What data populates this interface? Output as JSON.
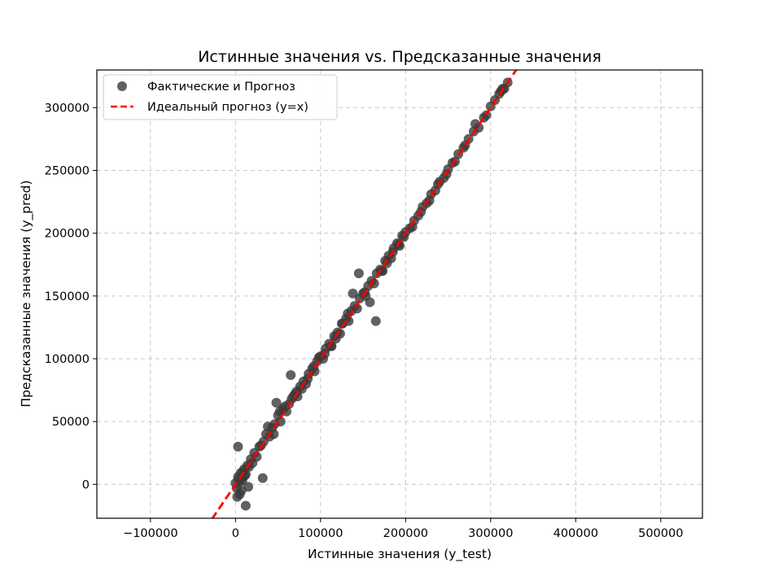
{
  "chart_data": {
    "type": "scatter",
    "title": "Истинные значения vs. Предсказанные значения",
    "xlabel": "Истинные значения (y_test)",
    "ylabel": "Предсказанные значения (y_pred)",
    "xlim": [
      -163000,
      549000
    ],
    "ylim": [
      -27000,
      330000
    ],
    "xticks": [
      -100000,
      0,
      100000,
      200000,
      300000,
      400000,
      500000
    ],
    "xtick_labels": [
      "−100000",
      "0",
      "100000",
      "200000",
      "300000",
      "400000",
      "500000"
    ],
    "yticks": [
      0,
      50000,
      100000,
      150000,
      200000,
      250000,
      300000
    ],
    "ytick_labels": [
      "0",
      "50000",
      "100000",
      "150000",
      "200000",
      "250000",
      "300000"
    ],
    "grid": true,
    "legend_position": "upper-left",
    "series": [
      {
        "name": "Фактические и  Прогноз",
        "kind": "scatter",
        "color": "#3a3a3a",
        "alpha": 0.8,
        "x": [
          0,
          1500,
          3000,
          4500,
          6000,
          8000,
          10000,
          12000,
          14000,
          16000,
          18000,
          20000,
          22000,
          25000,
          28000,
          30000,
          33000,
          36000,
          40000,
          43000,
          46000,
          50000,
          53000,
          56000,
          60000,
          63000,
          66000,
          70000,
          73000,
          76000,
          80000,
          83000,
          86000,
          90000,
          93000,
          96000,
          100000,
          103000,
          106000,
          110000,
          113000,
          116000,
          120000,
          123000,
          126000,
          130000,
          133000,
          136000,
          140000,
          143000,
          146000,
          150000,
          153000,
          156000,
          160000,
          163000,
          166000,
          170000,
          173000,
          176000,
          180000,
          183000,
          186000,
          190000,
          193000,
          196000,
          200000,
          205000,
          210000,
          215000,
          220000,
          225000,
          230000,
          235000,
          240000,
          245000,
          250000,
          255000,
          262000,
          268000,
          274000,
          280000,
          286000,
          292000,
          300000,
          305000,
          310000,
          312000,
          314000,
          316000,
          3000,
          5000,
          7000,
          9000,
          2000,
          4000,
          12000,
          15000,
          8000,
          11000,
          32000,
          38000,
          45000,
          52000,
          58000,
          65000,
          72000,
          78000,
          85000,
          92000,
          98000,
          105000,
          112000,
          118000,
          125000,
          132000,
          138000,
          145000,
          152000,
          158000,
          165000,
          172000,
          178000,
          185000,
          192000,
          198000,
          208000,
          218000,
          228000,
          238000,
          248000,
          258000,
          270000,
          282000,
          295000,
          320000,
          48000,
          68000
        ],
        "y": [
          1000,
          -3000,
          6000,
          2000,
          9000,
          5000,
          12000,
          8000,
          15000,
          14000,
          20000,
          17000,
          25000,
          22000,
          30000,
          31000,
          34000,
          40000,
          38000,
          45000,
          48000,
          55000,
          50000,
          60000,
          58000,
          64000,
          68000,
          72000,
          70000,
          78000,
          82000,
          80000,
          88000,
          92000,
          90000,
          98000,
          102000,
          100000,
          108000,
          112000,
          110000,
          118000,
          121000,
          120000,
          128000,
          132000,
          130000,
          138000,
          142000,
          140000,
          148000,
          152000,
          150000,
          158000,
          162000,
          160000,
          168000,
          171000,
          170000,
          178000,
          182000,
          180000,
          188000,
          192000,
          190000,
          198000,
          201000,
          204000,
          210000,
          214000,
          221000,
          224000,
          231000,
          234000,
          241000,
          244000,
          251000,
          256000,
          263000,
          268000,
          275000,
          281000,
          284000,
          292000,
          301000,
          306000,
          311000,
          313000,
          315000,
          315000,
          30000,
          -8000,
          -5000,
          10000,
          -10000,
          4000,
          -17000,
          -2000,
          3000,
          7000,
          5000,
          46000,
          40000,
          58000,
          62000,
          87000,
          74000,
          76000,
          84000,
          94000,
          101000,
          104000,
          110000,
          116000,
          128000,
          136000,
          152000,
          168000,
          153000,
          145000,
          130000,
          170000,
          176000,
          185000,
          191000,
          197000,
          205000,
          217000,
          226000,
          239000,
          247000,
          257000,
          270000,
          287000,
          294000,
          320000,
          65000,
          70000
        ]
      },
      {
        "name": "Идеальный прогноз (y=x)",
        "kind": "line",
        "color": "#ff0000",
        "style": "dashed",
        "x": [
          -60000,
          360000
        ],
        "y": [
          -60000,
          360000
        ]
      }
    ]
  }
}
